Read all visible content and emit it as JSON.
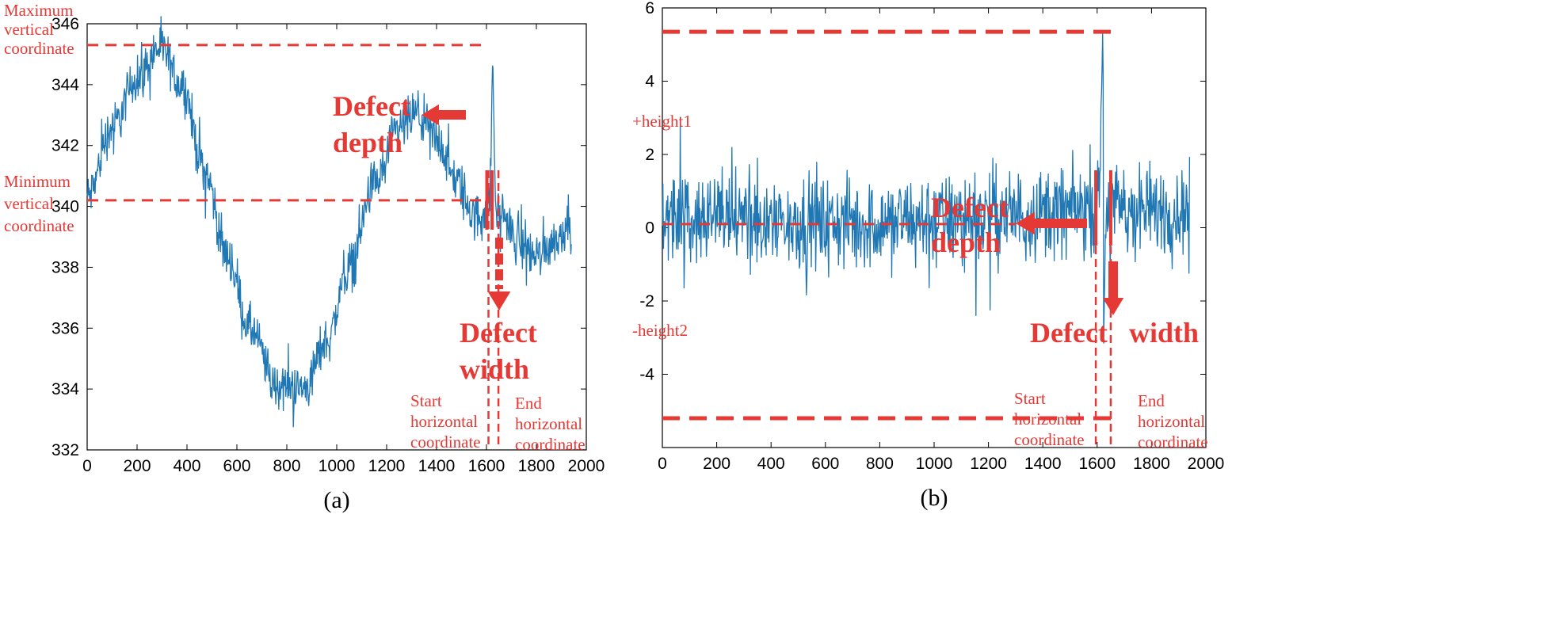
{
  "chart_data": [
    {
      "type": "line",
      "panel_label": "(a)",
      "xlim": [
        0,
        2000
      ],
      "ylim": [
        332,
        346
      ],
      "x_ticks": [
        "0",
        "200",
        "400",
        "600",
        "800",
        "1000",
        "1200",
        "1400",
        "1600",
        "1800",
        "2000"
      ],
      "y_ticks": [
        "332",
        "334",
        "336",
        "338",
        "340",
        "342",
        "344",
        "346"
      ],
      "series_color": "#1f77b4",
      "profile_knots": [
        [
          0,
          340.3
        ],
        [
          100,
          342.6
        ],
        [
          200,
          344.2
        ],
        [
          290,
          345.2
        ],
        [
          380,
          344.0
        ],
        [
          470,
          341.2
        ],
        [
          560,
          338.4
        ],
        [
          650,
          336.0
        ],
        [
          760,
          334.1
        ],
        [
          870,
          334.0
        ],
        [
          960,
          335.6
        ],
        [
          1050,
          338.0
        ],
        [
          1150,
          340.7
        ],
        [
          1250,
          342.5
        ],
        [
          1320,
          343.0
        ],
        [
          1400,
          342.2
        ],
        [
          1480,
          340.8
        ],
        [
          1560,
          339.6
        ],
        [
          1610,
          340.0
        ],
        [
          1660,
          339.8
        ],
        [
          1720,
          338.9
        ],
        [
          1800,
          338.4
        ],
        [
          1880,
          338.9
        ],
        [
          1940,
          339.7
        ]
      ],
      "defect": {
        "x": 1625,
        "peak": 345.1,
        "width": 12
      },
      "noise_amplitude": 0.55,
      "annotations": {
        "max_label": [
          "Maximum",
          "vertical",
          "coordinate"
        ],
        "min_label": [
          "Minimum",
          "vertical",
          "coordinate"
        ],
        "depth_label": [
          "Defect",
          "depth"
        ],
        "width_label": [
          "Defect",
          "width"
        ],
        "start_label": [
          "Start",
          "horizontal",
          "coordinate"
        ],
        "end_label": [
          "End",
          "horizontal",
          "coordinate"
        ],
        "max_y": 345.3,
        "min_y": 340.2,
        "start_x": 1608,
        "end_x": 1648
      }
    },
    {
      "type": "line",
      "panel_label": "(b)",
      "xlim": [
        0,
        2000
      ],
      "ylim": [
        -6,
        6
      ],
      "x_ticks": [
        "0",
        "200",
        "400",
        "600",
        "800",
        "1000",
        "1200",
        "1400",
        "1600",
        "1800",
        "2000"
      ],
      "y_ticks": [
        "-4",
        "-2",
        "0",
        "2",
        "4",
        "6"
      ],
      "series_color": "#1f77b4",
      "noise_amplitude": 0.85,
      "defect": {
        "x": 1620,
        "peak": 5.3,
        "trough": -5.2,
        "width": 14
      },
      "annotations": {
        "plus_label": "+height1",
        "minus_label": "-height2",
        "depth_label": [
          "Defect",
          "depth"
        ],
        "width_label_left": "Defect",
        "width_label_right": "width",
        "start_label": [
          "Start",
          "horizontal",
          "coordinate"
        ],
        "end_label": [
          "End",
          "horizontal",
          "coordinate"
        ],
        "top_y": 5.35,
        "bottom_y": -5.2,
        "zero_y": 0.1,
        "start_x": 1595,
        "end_x": 1650
      }
    }
  ]
}
